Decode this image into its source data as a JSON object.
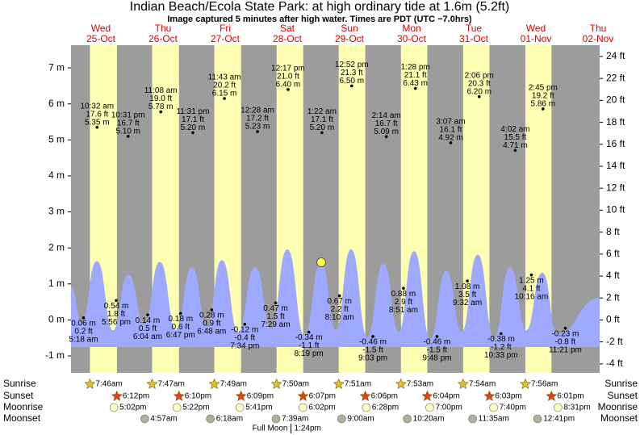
{
  "chart_data": {
    "type": "tide",
    "title": "Indian Beach/Ecola State Park: at high  ordinary tide at 1.6m (5.2ft)",
    "subtitle": "Image captured 5 minutes after high water. Times are PDT (UTC −7.0hrs)",
    "ylim": [
      -1.47,
      7.63
    ],
    "yticks": [
      {
        "value": -1,
        "label": "-1 m"
      },
      {
        "value": 0,
        "label": "0 m"
      },
      {
        "value": 1,
        "label": "1 m"
      },
      {
        "value": 2,
        "label": "2 m"
      },
      {
        "value": 3,
        "label": "3 m"
      },
      {
        "value": 4,
        "label": "4 m"
      },
      {
        "value": 5,
        "label": "5 m"
      },
      {
        "value": 6,
        "label": "6 m"
      },
      {
        "value": 7,
        "label": "7 m"
      }
    ],
    "y2lim": [
      -4.82,
      25.03
    ],
    "y2ticks": [
      {
        "value": -4,
        "label": "-4 ft"
      },
      {
        "value": -2,
        "label": "-2 ft"
      },
      {
        "value": 0,
        "label": "0 ft"
      },
      {
        "value": 2,
        "label": "2 ft"
      },
      {
        "value": 4,
        "label": "4 ft"
      },
      {
        "value": 6,
        "label": "6 ft"
      },
      {
        "value": 8,
        "label": "8 ft"
      },
      {
        "value": 10,
        "label": "10 ft"
      },
      {
        "value": 12,
        "label": "12 ft"
      },
      {
        "value": 14,
        "label": "14 ft"
      },
      {
        "value": 16,
        "label": "16 ft"
      },
      {
        "value": 18,
        "label": "18 ft"
      },
      {
        "value": 20,
        "label": "20 ft"
      },
      {
        "value": 22,
        "label": "22 ft"
      },
      {
        "value": 24,
        "label": "24 ft"
      }
    ],
    "tide_curve": {
      "x": [
        0.47,
        4.52,
        10.44,
        16.68,
        22.6,
        28.83,
        34.75,
        40.98,
        47.22,
        52.83,
        58.75,
        64.99,
        71.53,
        77.77,
        84.0,
        90.55,
        97.09,
        102.7,
        108.62,
        114.86,
        121.09,
        127.01,
        132.94,
        139.17,
        145.4,
        151.33,
        157.56,
        163.8,
        170.03,
        176.27,
        182.5,
        188.11,
        204.63
      ],
      "values": [
        0.9,
        -0.1,
        1.62,
        -0.3,
        1.25,
        -0.15,
        1.6,
        -0.3,
        1.45,
        -0.2,
        1.65,
        -0.35,
        1.45,
        -0.25,
        1.95,
        -0.45,
        1.6,
        -0.3,
        1.95,
        -0.5,
        1.55,
        -0.35,
        1.9,
        -0.55,
        1.35,
        -0.35,
        1.8,
        -0.55,
        1.45,
        -0.3,
        1.3,
        -0.4,
        0.6
      ]
    },
    "now_marker": {
      "x": 97.1,
      "value": 1.6
    },
    "astro_labels": [
      "Sunrise",
      "Sunset",
      "Moonrise",
      "Moonset"
    ],
    "full_moon_label": "Full Moon",
    "days": [
      {
        "weekday": "Wed",
        "date": "25-Oct",
        "sunrise": "7:46am",
        "sunset": "6:12pm",
        "moonrise": "5:02pm",
        "tides": [
          {
            "time": "5:18 am",
            "m": 0.06,
            "m_label": "0.06 m",
            "ft": 0.2,
            "ft_label": "0.2 ft"
          },
          {
            "time": "10:32 am",
            "m": 5.35,
            "m_label": "5.35 m",
            "ft": 17.6,
            "ft_label": "17.6 ft"
          },
          {
            "time": "5:56 pm",
            "m": 0.54,
            "m_label": "0.54 m",
            "ft": 1.8,
            "ft_label": "1.8 ft"
          },
          {
            "time": "10:31 pm",
            "m": 5.1,
            "m_label": "5.10 m",
            "ft": 16.7,
            "ft_label": "16.7 ft"
          }
        ]
      },
      {
        "weekday": "Thu",
        "date": "26-Oct",
        "sunrise": "7:47am",
        "sunset": "6:10pm",
        "moonrise": "5:22pm",
        "moonset": "4:57am",
        "tides": [
          {
            "time": "6:04 am",
            "m": 0.14,
            "m_label": "0.14 m",
            "ft": 0.5,
            "ft_label": "0.5 ft"
          },
          {
            "time": "11:08 am",
            "m": 5.78,
            "m_label": "5.78 m",
            "ft": 19.0,
            "ft_label": "19.0 ft"
          },
          {
            "time": "6:47 pm",
            "m": 0.18,
            "m_label": "0.18 m",
            "ft": 0.6,
            "ft_label": "0.6 ft"
          },
          {
            "time": "11:31 pm",
            "m": 5.2,
            "m_label": "5.20 m",
            "ft": 17.1,
            "ft_label": "17.1 ft"
          }
        ]
      },
      {
        "weekday": "Fri",
        "date": "27-Oct",
        "sunrise": "7:49am",
        "sunset": "6:09pm",
        "moonrise": "5:41pm",
        "moonset": "6:18am",
        "tides": [
          {
            "time": "6:48 am",
            "m": 0.28,
            "m_label": "0.28 m",
            "ft": 0.9,
            "ft_label": "0.9 ft"
          },
          {
            "time": "11:43 am",
            "m": 6.15,
            "m_label": "6.15 m",
            "ft": 20.2,
            "ft_label": "20.2 ft"
          },
          {
            "time": "7:34 pm",
            "m": -0.12,
            "m_label": "-0.12 m",
            "ft": -0.4,
            "ft_label": "-0.4 ft"
          }
        ]
      },
      {
        "weekday": "Sat",
        "date": "28-Oct",
        "sunrise": "7:50am",
        "sunset": "6:07pm",
        "moonrise": "6:02pm",
        "moonset": "7:39am",
        "full_moon": "1:24pm",
        "tides": [
          {
            "time": "12:28 am",
            "m": 5.23,
            "m_label": "5.23 m",
            "ft": 17.2,
            "ft_label": "17.2 ft"
          },
          {
            "time": "7:29 am",
            "m": 0.47,
            "m_label": "0.47 m",
            "ft": 1.5,
            "ft_label": "1.5 ft"
          },
          {
            "time": "12:17 pm",
            "m": 6.4,
            "m_label": "6.40 m",
            "ft": 21.0,
            "ft_label": "21.0 ft"
          },
          {
            "time": "8:19 pm",
            "m": -0.34,
            "m_label": "-0.34 m",
            "ft": -1.1,
            "ft_label": "-1.1 ft"
          }
        ]
      },
      {
        "weekday": "Sun",
        "date": "29-Oct",
        "sunrise": "7:51am",
        "sunset": "6:06pm",
        "moonrise": "6:28pm",
        "moonset": "9:00am",
        "tides": [
          {
            "time": "1:22 am",
            "m": 5.2,
            "m_label": "5.20 m",
            "ft": 17.1,
            "ft_label": "17.1 ft"
          },
          {
            "time": "8:10 am",
            "m": 0.67,
            "m_label": "0.67 m",
            "ft": 2.2,
            "ft_label": "2.2 ft"
          },
          {
            "time": "12:52 pm",
            "m": 6.5,
            "m_label": "6.50 m",
            "ft": 21.3,
            "ft_label": "21.3 ft"
          },
          {
            "time": "9:03 pm",
            "m": -0.46,
            "m_label": "-0.46 m",
            "ft": -1.5,
            "ft_label": "-1.5 ft"
          }
        ]
      },
      {
        "weekday": "Mon",
        "date": "30-Oct",
        "sunrise": "7:53am",
        "sunset": "6:04pm",
        "moonrise": "7:00pm",
        "moonset": "10:20am",
        "tides": [
          {
            "time": "2:14 am",
            "m": 5.09,
            "m_label": "5.09 m",
            "ft": 16.7,
            "ft_label": "16.7 ft"
          },
          {
            "time": "8:51 am",
            "m": 0.88,
            "m_label": "0.88 m",
            "ft": 2.9,
            "ft_label": "2.9 ft"
          },
          {
            "time": "1:28 pm",
            "m": 6.43,
            "m_label": "6.43 m",
            "ft": 21.1,
            "ft_label": "21.1 ft"
          },
          {
            "time": "9:48 pm",
            "m": -0.46,
            "m_label": "-0.46 m",
            "ft": -1.5,
            "ft_label": "-1.5 ft"
          }
        ]
      },
      {
        "weekday": "Tue",
        "date": "31-Oct",
        "sunrise": "7:54am",
        "sunset": "6:03pm",
        "moonrise": "7:40pm",
        "moonset": "11:35am",
        "tides": [
          {
            "time": "3:07 am",
            "m": 4.92,
            "m_label": "4.92 m",
            "ft": 16.1,
            "ft_label": "16.1 ft"
          },
          {
            "time": "9:32 am",
            "m": 1.08,
            "m_label": "1.08 m",
            "ft": 3.5,
            "ft_label": "3.5 ft"
          },
          {
            "time": "2:06 pm",
            "m": 6.2,
            "m_label": "6.20 m",
            "ft": 20.3,
            "ft_label": "20.3 ft"
          },
          {
            "time": "10:33 pm",
            "m": -0.38,
            "m_label": "-0.38 m",
            "ft": -1.2,
            "ft_label": "-1.2 ft"
          }
        ]
      },
      {
        "weekday": "Wed",
        "date": "01-Nov",
        "sunrise": "7:56am",
        "sunset": "6:01pm",
        "moonrise": "8:31pm",
        "moonset": "12:41pm",
        "tides": [
          {
            "time": "4:02 am",
            "m": 4.71,
            "m_label": "4.71 m",
            "ft": 15.5,
            "ft_label": "15.5 ft"
          },
          {
            "time": "10:16 am",
            "m": 1.25,
            "m_label": "1.25 m",
            "ft": 4.1,
            "ft_label": "4.1 ft"
          },
          {
            "time": "2:45 pm",
            "m": 5.86,
            "m_label": "5.86 m",
            "ft": 19.2,
            "ft_label": "19.2 ft"
          },
          {
            "time": "11:21 pm",
            "m": -0.23,
            "m_label": "-0.23 m",
            "ft": -0.8,
            "ft_label": "-0.8 ft"
          }
        ]
      },
      {
        "weekday": "Thu",
        "date": "02-Nov"
      }
    ]
  }
}
